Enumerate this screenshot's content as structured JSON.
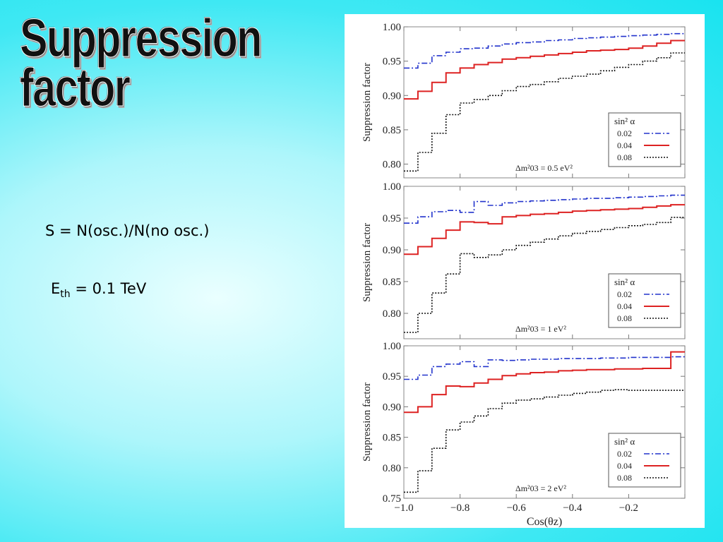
{
  "slide": {
    "title": "Suppression factor",
    "formula": "S = N(osc.)/N(no osc.)",
    "threshold_prefix": "E",
    "threshold_sub": "th",
    "threshold_suffix": " = 0.1 TeV"
  },
  "chart_data": [
    {
      "type": "line",
      "step": true,
      "xlabel": "Cos(θz)",
      "ylabel": "Suppression factor",
      "xlim": [
        -1.0,
        0.0
      ],
      "ylim": [
        0.78,
        1.0
      ],
      "yticks": [
        "0.80",
        "0.85",
        "0.90",
        "0.95",
        "1.00"
      ],
      "legend_title": "sin² α",
      "legend_position": "bottom-right",
      "annotation": "Δm²03 = 0.5 eV²",
      "x": [
        -1.0,
        -0.95,
        -0.9,
        -0.85,
        -0.8,
        -0.75,
        -0.7,
        -0.65,
        -0.6,
        -0.55,
        -0.5,
        -0.45,
        -0.4,
        -0.35,
        -0.3,
        -0.25,
        -0.2,
        -0.15,
        -0.1,
        -0.05
      ],
      "series": [
        {
          "name": "0.02",
          "color": "#2233cc",
          "dash": "8,3,2,3",
          "values": [
            0.94,
            0.947,
            0.958,
            0.963,
            0.968,
            0.969,
            0.972,
            0.975,
            0.977,
            0.978,
            0.98,
            0.981,
            0.983,
            0.984,
            0.985,
            0.986,
            0.987,
            0.988,
            0.989,
            0.99
          ]
        },
        {
          "name": "0.04",
          "color": "#dd2222",
          "dash": "",
          "values": [
            0.895,
            0.906,
            0.919,
            0.933,
            0.94,
            0.945,
            0.948,
            0.953,
            0.955,
            0.957,
            0.959,
            0.961,
            0.963,
            0.965,
            0.966,
            0.967,
            0.969,
            0.972,
            0.976,
            0.98
          ]
        },
        {
          "name": "0.08",
          "color": "#111111",
          "dash": "2,2",
          "values": [
            0.79,
            0.817,
            0.845,
            0.872,
            0.889,
            0.894,
            0.9,
            0.907,
            0.913,
            0.916,
            0.92,
            0.925,
            0.928,
            0.931,
            0.936,
            0.941,
            0.945,
            0.95,
            0.955,
            0.962
          ]
        }
      ]
    },
    {
      "type": "line",
      "step": true,
      "xlabel": "Cos(θz)",
      "ylabel": "Suppression factor",
      "xlim": [
        -1.0,
        0.0
      ],
      "ylim": [
        0.76,
        1.0
      ],
      "yticks": [
        "0.80",
        "0.85",
        "0.90",
        "0.95",
        "1.00"
      ],
      "legend_title": "sin² α",
      "legend_position": "bottom-right",
      "annotation": "Δm²03 = 1 eV²",
      "x": [
        -1.0,
        -0.95,
        -0.9,
        -0.85,
        -0.8,
        -0.75,
        -0.7,
        -0.65,
        -0.6,
        -0.55,
        -0.5,
        -0.45,
        -0.4,
        -0.35,
        -0.3,
        -0.25,
        -0.2,
        -0.15,
        -0.1,
        -0.05
      ],
      "series": [
        {
          "name": "0.02",
          "color": "#2233cc",
          "dash": "8,3,2,3",
          "values": [
            0.942,
            0.952,
            0.96,
            0.962,
            0.959,
            0.976,
            0.97,
            0.974,
            0.976,
            0.977,
            0.978,
            0.979,
            0.98,
            0.981,
            0.981,
            0.982,
            0.983,
            0.984,
            0.985,
            0.986
          ]
        },
        {
          "name": "0.04",
          "color": "#dd2222",
          "dash": "",
          "values": [
            0.893,
            0.905,
            0.918,
            0.931,
            0.944,
            0.943,
            0.941,
            0.952,
            0.954,
            0.956,
            0.957,
            0.959,
            0.961,
            0.962,
            0.963,
            0.964,
            0.965,
            0.967,
            0.969,
            0.971
          ]
        },
        {
          "name": "0.08",
          "color": "#111111",
          "dash": "2,2",
          "values": [
            0.77,
            0.8,
            0.832,
            0.862,
            0.894,
            0.888,
            0.892,
            0.9,
            0.907,
            0.912,
            0.917,
            0.922,
            0.926,
            0.929,
            0.932,
            0.935,
            0.938,
            0.94,
            0.943,
            0.951
          ]
        }
      ]
    },
    {
      "type": "line",
      "step": true,
      "xlabel": "Cos(θz)",
      "ylabel": "Suppression factor",
      "xlim": [
        -1.0,
        0.0
      ],
      "ylim": [
        0.75,
        1.0
      ],
      "yticks": [
        "0.75",
        "0.80",
        "0.85",
        "0.90",
        "0.95",
        "1.00"
      ],
      "xticks": [
        "−1.0",
        "−0.8",
        "−0.6",
        "−0.4",
        "−0.2"
      ],
      "legend_title": "sin² α",
      "legend_position": "bottom-right",
      "annotation": "Δm²03 = 2 eV²",
      "x": [
        -1.0,
        -0.95,
        -0.9,
        -0.85,
        -0.8,
        -0.75,
        -0.7,
        -0.65,
        -0.6,
        -0.55,
        -0.5,
        -0.45,
        -0.4,
        -0.35,
        -0.3,
        -0.25,
        -0.2,
        -0.15,
        -0.1,
        -0.05
      ],
      "series": [
        {
          "name": "0.02",
          "color": "#2233cc",
          "dash": "8,3,2,3",
          "values": [
            0.945,
            0.952,
            0.966,
            0.97,
            0.974,
            0.966,
            0.977,
            0.976,
            0.977,
            0.978,
            0.978,
            0.979,
            0.979,
            0.979,
            0.98,
            0.98,
            0.981,
            0.981,
            0.981,
            0.982
          ]
        },
        {
          "name": "0.04",
          "color": "#dd2222",
          "dash": "",
          "values": [
            0.891,
            0.9,
            0.92,
            0.934,
            0.933,
            0.939,
            0.945,
            0.951,
            0.954,
            0.956,
            0.957,
            0.959,
            0.96,
            0.961,
            0.961,
            0.962,
            0.962,
            0.963,
            0.963,
            0.99
          ]
        },
        {
          "name": "0.08",
          "color": "#111111",
          "dash": "2,2",
          "values": [
            0.76,
            0.795,
            0.832,
            0.862,
            0.875,
            0.885,
            0.897,
            0.906,
            0.911,
            0.913,
            0.916,
            0.919,
            0.922,
            0.924,
            0.927,
            0.928,
            0.927,
            0.927,
            0.927,
            0.927
          ]
        }
      ]
    }
  ]
}
